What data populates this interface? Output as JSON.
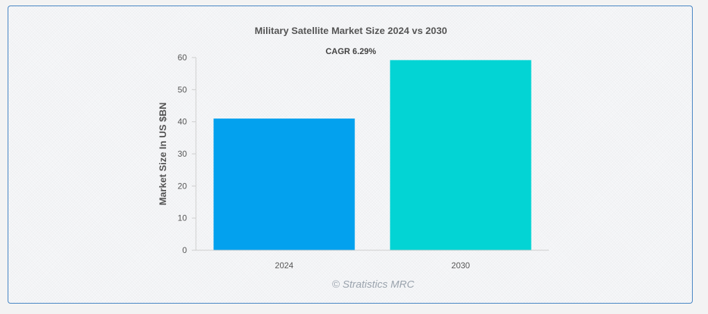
{
  "chart_data": {
    "type": "bar",
    "title": "Military Satellite Market Size 2024 vs 2030",
    "annotation": "CAGR 6.29%",
    "categories": [
      "2024",
      "2030"
    ],
    "values": [
      41,
      59.2
    ],
    "colors": [
      "#03a1ee",
      "#03d4d4"
    ],
    "ylabel": "Market Size In US $BN",
    "xlabel": "",
    "ylim": [
      0,
      60
    ],
    "yticks": [
      "0",
      "10",
      "20",
      "30",
      "40",
      "50",
      "60"
    ],
    "grid": false,
    "legend": "none"
  },
  "credit": "© Stratistics MRC",
  "colors": {
    "border": "#3d7fc1",
    "axis": "#cccccc"
  }
}
